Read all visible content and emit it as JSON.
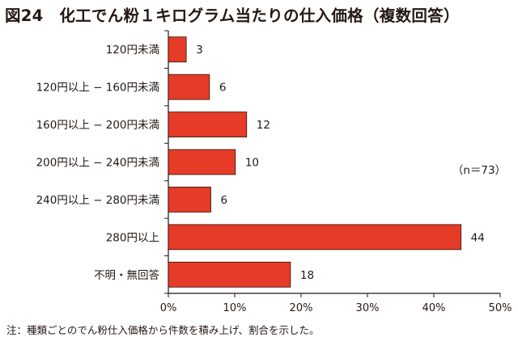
{
  "chart_data": {
    "type": "bar",
    "orientation": "horizontal",
    "title": "図24　化工でん粉１キログラム当たりの仕入価格（複数回答）",
    "categories": [
      "120円未満",
      "120円以上 − 160円未満",
      "160円以上 − 200円未満",
      "200円以上 − 240円未満",
      "240円以上 − 280円未満",
      "280円以上",
      "不明・無回答"
    ],
    "values": [
      2.7,
      6.2,
      11.8,
      10.1,
      6.4,
      44.1,
      18.4
    ],
    "data_labels": [
      "3",
      "6",
      "12",
      "10",
      "6",
      "44",
      "18"
    ],
    "xlim": [
      0,
      50
    ],
    "xticks": [
      "0%",
      "10%",
      "20%",
      "30%",
      "40%",
      "50%"
    ],
    "xlabel": "",
    "ylabel": "",
    "bar_color": "#e63b26",
    "bar_edge_color": "#231815",
    "grid": false,
    "annotation": "（n＝73）",
    "note": "注：種類ごとのでん粉仕入価格から件数を積み上げ、割合を示した。"
  }
}
